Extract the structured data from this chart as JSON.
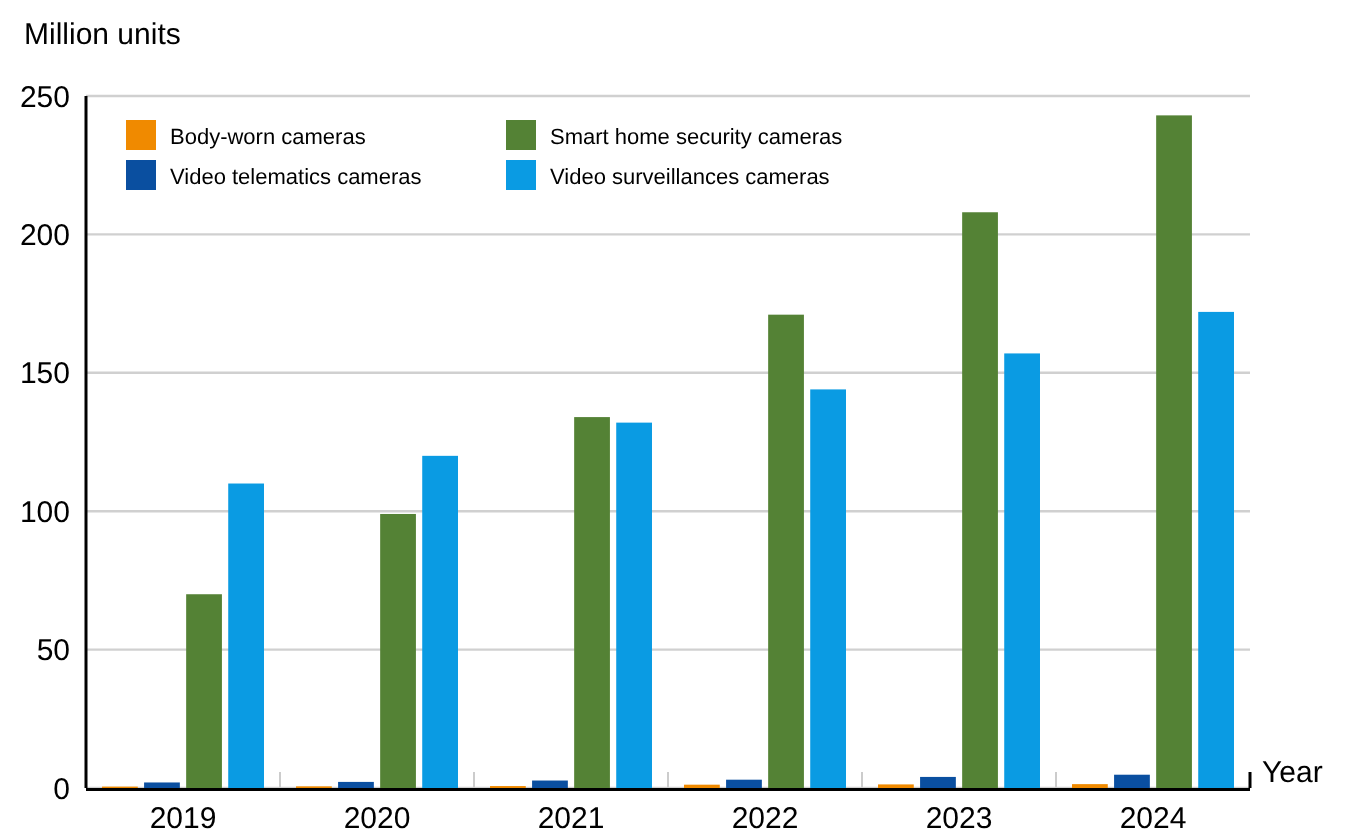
{
  "chart_data": {
    "type": "bar",
    "ylabel": "Million units",
    "xlabel": "Year",
    "categories": [
      "2019",
      "2020",
      "2021",
      "2022",
      "2023",
      "2024"
    ],
    "series": [
      {
        "name": "Body-worn cameras",
        "color": "#f08a00",
        "values": [
          0.5,
          0.6,
          0.7,
          1.2,
          1.3,
          1.4
        ]
      },
      {
        "name": "Video telematics cameras",
        "color": "#0a4fa0",
        "values": [
          2,
          2.2,
          2.7,
          3,
          4,
          4.8
        ]
      },
      {
        "name": "Smart home security cameras",
        "color": "#548235",
        "values": [
          70,
          99,
          134,
          171,
          208,
          243
        ]
      },
      {
        "name": "Video surveillances cameras",
        "color": "#0a9be3",
        "values": [
          110,
          120,
          132,
          144,
          157,
          172
        ]
      }
    ],
    "ylim": [
      0,
      250
    ],
    "yticks": [
      0,
      50,
      100,
      150,
      200,
      250
    ],
    "grid": "y",
    "legend": "top left"
  }
}
